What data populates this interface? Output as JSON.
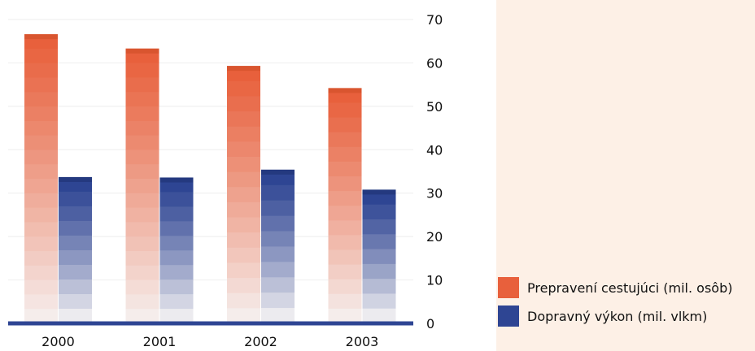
{
  "chart_data": {
    "type": "bar",
    "categories": [
      "2000",
      "2001",
      "2002",
      "2003"
    ],
    "series": [
      {
        "name": "Prepravení cestujúci (mil. osôb)",
        "values": [
          66.6,
          63.3,
          59.3,
          54.2
        ],
        "color": "#e8603c"
      },
      {
        "name": "Dopravný výkon (mil. vlkm)",
        "values": [
          33.7,
          33.6,
          35.4,
          30.8
        ],
        "color": "#2e4593"
      }
    ],
    "title": "",
    "xlabel": "",
    "ylabel": "",
    "ylim": [
      0,
      70
    ],
    "yticks": [
      "0",
      "10",
      "20",
      "30",
      "40",
      "50",
      "60",
      "70"
    ],
    "y_axis_position": "right",
    "grid": true,
    "legend_position": "bottom-right"
  },
  "colors": {
    "legend_background": "#fdf0e6",
    "baseline": "#2e4593",
    "gridline": "#eeeeee"
  }
}
